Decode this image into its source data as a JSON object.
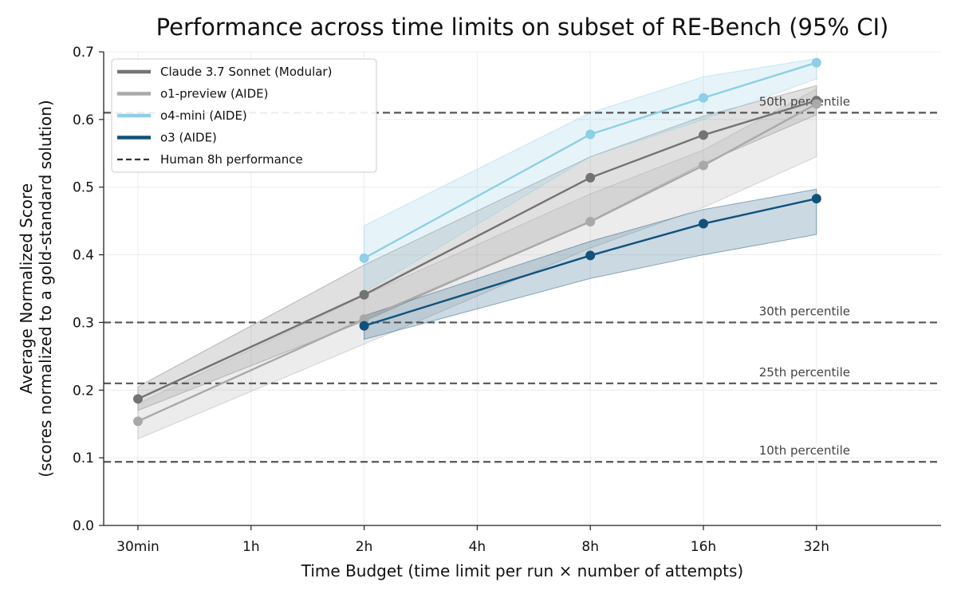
{
  "chart_data": {
    "type": "line",
    "title": "Performance across time limits on subset of RE-Bench (95% CI)",
    "xlabel": "Time Budget (time limit per run × number of attempts)",
    "ylabel": [
      "Average Normalized Score",
      "(scores normalized to a gold-standard solution)"
    ],
    "categories": [
      "30min",
      "1h",
      "2h",
      "4h",
      "8h",
      "16h",
      "32h"
    ],
    "ylim": [
      0,
      0.7
    ],
    "yticks": [
      "0.0",
      "0.1",
      "0.2",
      "0.3",
      "0.4",
      "0.5",
      "0.6",
      "0.7"
    ],
    "grid": true,
    "legend_position": "top-left",
    "series": [
      {
        "name": "Claude 3.7 Sonnet (Modular)",
        "color": "#737373",
        "points": [
          {
            "x": "30min",
            "y": 0.187,
            "lo": 0.17,
            "hi": 0.205
          },
          {
            "x": "2h",
            "y": 0.341,
            "lo": 0.302,
            "hi": 0.385
          },
          {
            "x": "8h",
            "y": 0.514,
            "lo": 0.45,
            "hi": 0.545
          },
          {
            "x": "16h",
            "y": 0.577,
            "lo": 0.535,
            "hi": 0.605
          },
          {
            "x": "32h",
            "y": 0.628,
            "lo": 0.607,
            "hi": 0.65
          }
        ]
      },
      {
        "name": "o1-preview (AIDE)",
        "color": "#a9a9a9",
        "points": [
          {
            "x": "30min",
            "y": 0.154,
            "lo": 0.128,
            "hi": 0.18
          },
          {
            "x": "2h",
            "y": 0.305,
            "lo": 0.268,
            "hi": 0.34
          },
          {
            "x": "8h",
            "y": 0.449,
            "lo": 0.41,
            "hi": 0.49
          },
          {
            "x": "16h",
            "y": 0.532,
            "lo": 0.47,
            "hi": 0.555
          },
          {
            "x": "32h",
            "y": 0.623,
            "lo": 0.545,
            "hi": 0.645
          }
        ]
      },
      {
        "name": "o4-mini (AIDE)",
        "color": "#8ecfe6",
        "points": [
          {
            "x": "2h",
            "y": 0.395,
            "lo": 0.345,
            "hi": 0.443
          },
          {
            "x": "8h",
            "y": 0.578,
            "lo": 0.545,
            "hi": 0.61
          },
          {
            "x": "16h",
            "y": 0.632,
            "lo": 0.6,
            "hi": 0.663
          },
          {
            "x": "32h",
            "y": 0.684,
            "lo": 0.66,
            "hi": 0.69
          }
        ]
      },
      {
        "name": "o3 (AIDE)",
        "color": "#11527c",
        "points": [
          {
            "x": "2h",
            "y": 0.295,
            "lo": 0.275,
            "hi": 0.31
          },
          {
            "x": "8h",
            "y": 0.399,
            "lo": 0.365,
            "hi": 0.42
          },
          {
            "x": "16h",
            "y": 0.446,
            "lo": 0.4,
            "hi": 0.467
          },
          {
            "x": "32h",
            "y": 0.483,
            "lo": 0.43,
            "hi": 0.497
          }
        ]
      }
    ],
    "reference_lines": [
      {
        "label": "50th percentile",
        "y": 0.61
      },
      {
        "label": "30th percentile",
        "y": 0.3
      },
      {
        "label": "25th percentile",
        "y": 0.21
      },
      {
        "label": "10th percentile",
        "y": 0.094
      }
    ],
    "reference_legend_label": "Human 8h performance",
    "reference_color": "#555555"
  }
}
